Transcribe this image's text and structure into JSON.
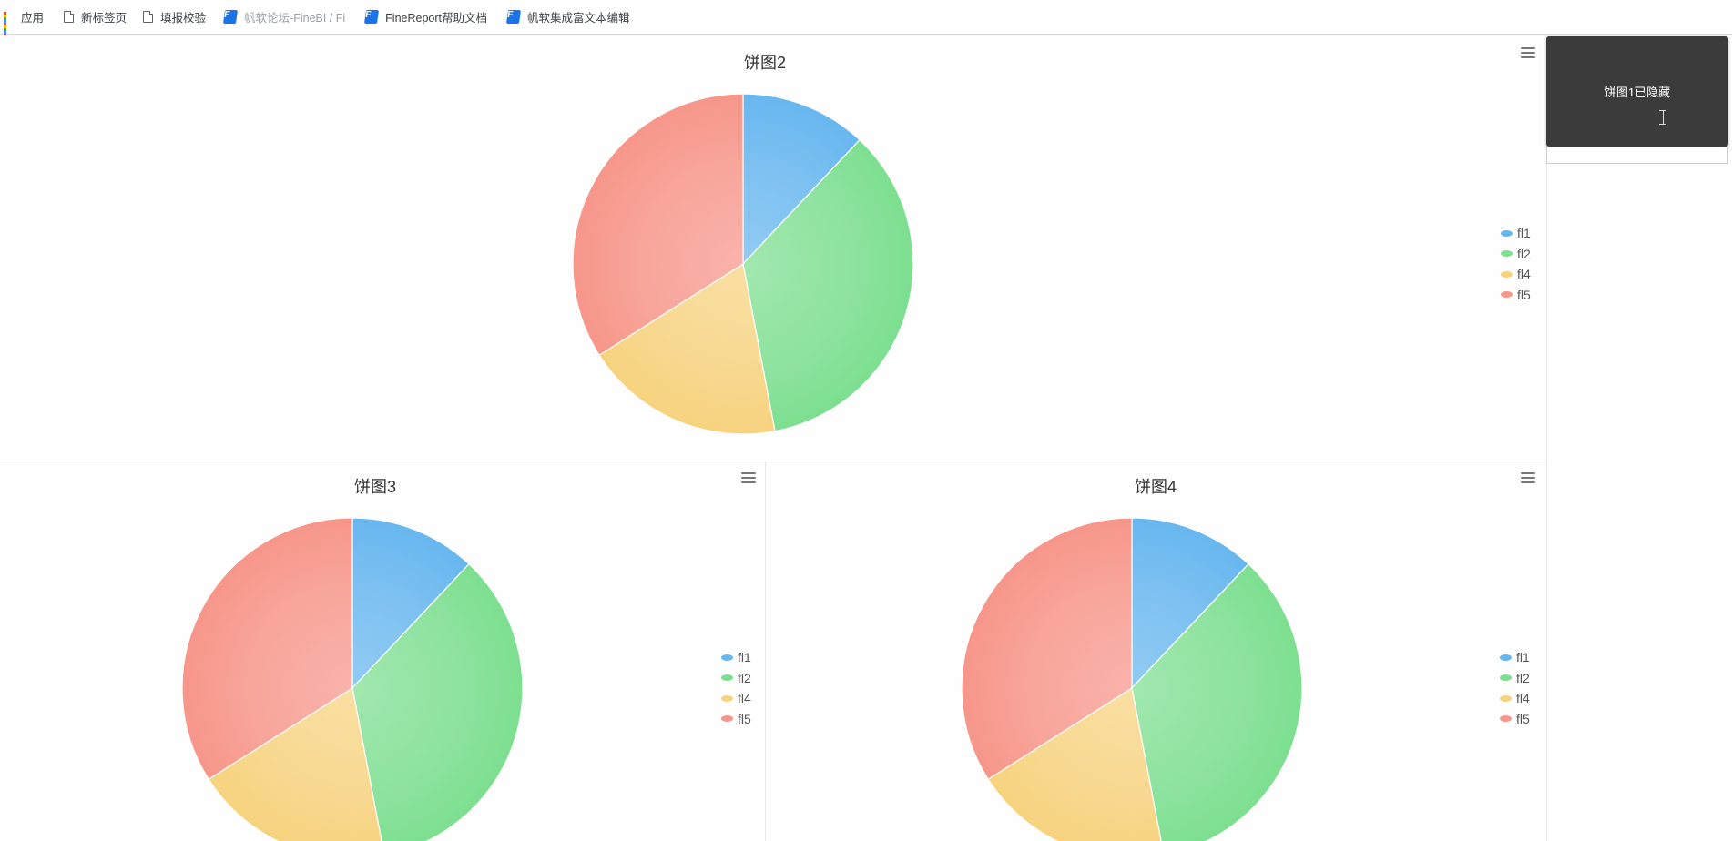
{
  "bookmarks": [
    {
      "label": "应用",
      "icon": "apps-grid-icon"
    },
    {
      "label": "新标签页",
      "icon": "page-icon"
    },
    {
      "label": "填报校验",
      "icon": "page-icon"
    },
    {
      "label": "帆软论坛-FineBI / Fi",
      "icon": "fanruan-logo-icon"
    },
    {
      "label": "FineReport帮助文档",
      "icon": "fanruan-logo-icon"
    },
    {
      "label": "帆软集成富文本编辑",
      "icon": "fanruan-logo-icon"
    }
  ],
  "toast": {
    "text": "饼图1已隐藏"
  },
  "colors": {
    "fl1": "#67b7ef",
    "fl2": "#7ddf90",
    "fl4": "#f7d37f",
    "fl5": "#f7968a"
  },
  "chart_data": [
    {
      "type": "pie",
      "title": "饼图2",
      "categories": [
        "fl1",
        "fl2",
        "fl4",
        "fl5"
      ],
      "values": [
        12,
        35,
        19,
        34
      ],
      "legend": "right"
    },
    {
      "type": "pie",
      "title": "饼图3",
      "categories": [
        "fl1",
        "fl2",
        "fl4",
        "fl5"
      ],
      "values": [
        12,
        35,
        19,
        34
      ],
      "legend": "right"
    },
    {
      "type": "pie",
      "title": "饼图4",
      "categories": [
        "fl1",
        "fl2",
        "fl4",
        "fl5"
      ],
      "values": [
        12,
        35,
        19,
        34
      ],
      "legend": "right"
    }
  ]
}
